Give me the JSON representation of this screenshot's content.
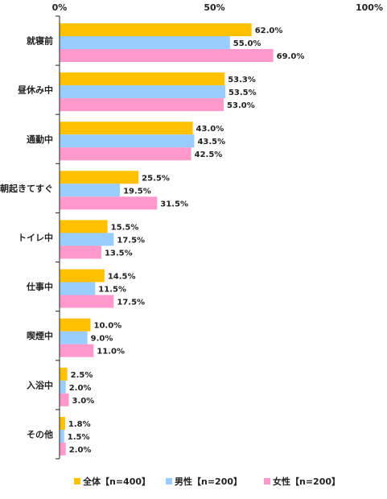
{
  "chart_data": {
    "type": "bar",
    "orientation": "horizontal",
    "categories": [
      "就寝前",
      "昼休み中",
      "通勤中",
      "朝起きてすぐ",
      "トイレ中",
      "仕事中",
      "喫煙中",
      "入浴中",
      "その他"
    ],
    "series": [
      {
        "name": "全体【n=400】",
        "color": "#FFC000",
        "values": [
          62.0,
          53.3,
          43.0,
          25.5,
          15.5,
          14.5,
          10.0,
          2.5,
          1.8
        ]
      },
      {
        "name": "男性【n=200】",
        "color": "#99CCFF",
        "values": [
          55.0,
          53.5,
          43.5,
          19.5,
          17.5,
          11.5,
          9.0,
          2.0,
          1.5
        ]
      },
      {
        "name": "女性【n=200】",
        "color": "#FF99CC",
        "values": [
          69.0,
          53.0,
          42.5,
          31.5,
          13.5,
          17.5,
          11.0,
          3.0,
          2.0
        ]
      }
    ],
    "x_ticks": [
      "0%",
      "50%",
      "100%"
    ],
    "xlim": [
      0,
      100
    ],
    "grid": false,
    "legend_position": "bottom",
    "data_label_suffix": "%"
  }
}
